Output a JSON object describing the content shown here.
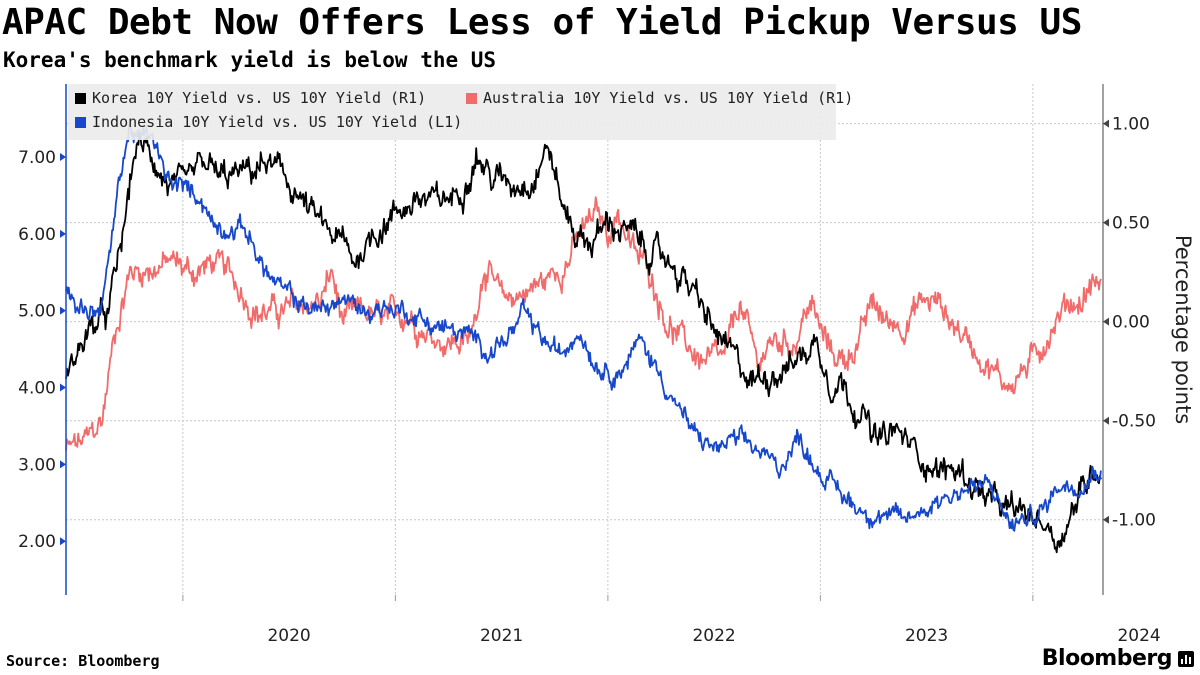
{
  "header": {
    "title": "APAC Debt Now Offers Less of Yield Pickup Versus US",
    "subtitle": "Korea's benchmark yield is below the US"
  },
  "footer": {
    "source": "Source: Bloomberg",
    "brand": "Bloomberg"
  },
  "chart_data": {
    "type": "line",
    "title": "APAC Debt Now Offers Less of Yield Pickup Versus US",
    "subtitle": "Korea's benchmark yield is below the US",
    "xlabel": "",
    "ylabel_right": "Percentage points",
    "x_ticks": [
      "2020",
      "2021",
      "2022",
      "2023",
      "2024"
    ],
    "x_range": [
      2019.45,
      2024.33
    ],
    "y_left": {
      "ticks": [
        "2.00",
        "3.00",
        "4.00",
        "5.00",
        "6.00",
        "7.00"
      ],
      "range": [
        1.3,
        7.95
      ]
    },
    "y_right": {
      "ticks": [
        "-1.00",
        "-0.50",
        "0.00",
        "0.50",
        "1.00"
      ],
      "range": [
        -1.38,
        1.2
      ]
    },
    "grid": true,
    "legend_position": "top-left",
    "colors": {
      "korea": "#000000",
      "australia": "#f26b6b",
      "indonesia": "#1748cc"
    },
    "series": [
      {
        "name": "Korea 10Y Yield vs. US 10Y Yield",
        "axis_label": "(R1)",
        "axis": "right",
        "color": "#000000",
        "points": [
          [
            2019.45,
            -0.27
          ],
          [
            2019.55,
            -0.05
          ],
          [
            2019.65,
            0.04
          ],
          [
            2019.72,
            0.45
          ],
          [
            2019.78,
            0.9
          ],
          [
            2019.85,
            0.85
          ],
          [
            2019.92,
            0.7
          ],
          [
            2020.0,
            0.66
          ],
          [
            2020.1,
            0.8
          ],
          [
            2020.18,
            0.72
          ],
          [
            2020.3,
            0.75
          ],
          [
            2020.4,
            0.8
          ],
          [
            2020.5,
            0.7
          ],
          [
            2020.6,
            0.55
          ],
          [
            2020.68,
            0.45
          ],
          [
            2020.75,
            0.4
          ],
          [
            2020.8,
            0.3
          ],
          [
            2020.9,
            0.45
          ],
          [
            2021.0,
            0.55
          ],
          [
            2021.1,
            0.62
          ],
          [
            2021.2,
            0.6
          ],
          [
            2021.3,
            0.65
          ],
          [
            2021.38,
            0.85
          ],
          [
            2021.45,
            0.73
          ],
          [
            2021.55,
            0.7
          ],
          [
            2021.65,
            0.73
          ],
          [
            2021.72,
            0.9
          ],
          [
            2021.78,
            0.6
          ],
          [
            2021.85,
            0.45
          ],
          [
            2021.92,
            0.4
          ],
          [
            2022.0,
            0.5
          ],
          [
            2022.1,
            0.45
          ],
          [
            2022.2,
            0.35
          ],
          [
            2022.3,
            0.3
          ],
          [
            2022.4,
            0.15
          ],
          [
            2022.5,
            -0.05
          ],
          [
            2022.6,
            -0.2
          ],
          [
            2022.68,
            -0.3
          ],
          [
            2022.78,
            -0.25
          ],
          [
            2022.88,
            -0.2
          ],
          [
            2022.98,
            -0.1
          ],
          [
            2023.05,
            -0.3
          ],
          [
            2023.1,
            -0.3
          ],
          [
            2023.15,
            -0.4
          ],
          [
            2023.2,
            -0.45
          ],
          [
            2023.25,
            -0.6
          ],
          [
            2023.3,
            -0.6
          ],
          [
            2023.35,
            -0.55
          ],
          [
            2023.45,
            -0.65
          ],
          [
            2023.55,
            -0.75
          ],
          [
            2023.65,
            -0.75
          ],
          [
            2023.75,
            -0.85
          ],
          [
            2023.85,
            -0.95
          ],
          [
            2023.95,
            -0.97
          ],
          [
            2024.05,
            -1.0
          ],
          [
            2024.12,
            -1.1
          ],
          [
            2024.2,
            -0.92
          ],
          [
            2024.28,
            -0.75
          ],
          [
            2024.32,
            -0.72
          ]
        ]
      },
      {
        "name": "Australia 10Y Yield vs. US 10Y Yield",
        "axis_label": "(R1)",
        "axis": "right",
        "color": "#f26b6b",
        "points": [
          [
            2019.45,
            -0.65
          ],
          [
            2019.55,
            -0.6
          ],
          [
            2019.62,
            -0.5
          ],
          [
            2019.68,
            -0.05
          ],
          [
            2019.75,
            0.25
          ],
          [
            2019.85,
            0.27
          ],
          [
            2019.95,
            0.3
          ],
          [
            2020.05,
            0.25
          ],
          [
            2020.15,
            0.3
          ],
          [
            2020.25,
            0.2
          ],
          [
            2020.35,
            0.05
          ],
          [
            2020.45,
            0.05
          ],
          [
            2020.55,
            0.08
          ],
          [
            2020.65,
            0.1
          ],
          [
            2020.7,
            0.25
          ],
          [
            2020.75,
            0.0
          ],
          [
            2020.85,
            0.05
          ],
          [
            2020.95,
            0.0
          ],
          [
            2021.05,
            0.05
          ],
          [
            2021.15,
            -0.05
          ],
          [
            2021.25,
            -0.1
          ],
          [
            2021.35,
            -0.1
          ],
          [
            2021.42,
            0.3
          ],
          [
            2021.5,
            0.1
          ],
          [
            2021.6,
            0.15
          ],
          [
            2021.7,
            0.2
          ],
          [
            2021.8,
            0.3
          ],
          [
            2021.88,
            0.45
          ],
          [
            2021.95,
            0.55
          ],
          [
            2022.0,
            0.45
          ],
          [
            2022.05,
            0.55
          ],
          [
            2022.12,
            0.35
          ],
          [
            2022.2,
            0.25
          ],
          [
            2022.28,
            0.0
          ],
          [
            2022.35,
            -0.1
          ],
          [
            2022.45,
            -0.2
          ],
          [
            2022.55,
            -0.2
          ],
          [
            2022.62,
            0.1
          ],
          [
            2022.7,
            -0.2
          ],
          [
            2022.78,
            -0.1
          ],
          [
            2022.88,
            -0.1
          ],
          [
            2022.95,
            0.1
          ],
          [
            2023.02,
            -0.1
          ],
          [
            2023.1,
            -0.2
          ],
          [
            2023.18,
            -0.1
          ],
          [
            2023.25,
            0.1
          ],
          [
            2023.3,
            0.0
          ],
          [
            2023.4,
            0.0
          ],
          [
            2023.48,
            0.1
          ],
          [
            2023.55,
            0.1
          ],
          [
            2023.62,
            0.0
          ],
          [
            2023.7,
            -0.1
          ],
          [
            2023.78,
            -0.2
          ],
          [
            2023.85,
            -0.3
          ],
          [
            2023.9,
            -0.3
          ],
          [
            2023.95,
            -0.25
          ],
          [
            2024.0,
            -0.2
          ],
          [
            2024.05,
            -0.1
          ],
          [
            2024.1,
            0.0
          ],
          [
            2024.17,
            0.1
          ],
          [
            2024.23,
            0.1
          ],
          [
            2024.28,
            0.2
          ],
          [
            2024.32,
            0.2
          ]
        ]
      },
      {
        "name": "Indonesia 10Y Yield vs. US 10Y Yield",
        "axis_label": "(L1)",
        "axis": "left",
        "color": "#1748cc",
        "points": [
          [
            2019.45,
            5.25
          ],
          [
            2019.52,
            5.05
          ],
          [
            2019.58,
            5.0
          ],
          [
            2019.62,
            5.1
          ],
          [
            2019.66,
            5.8
          ],
          [
            2019.7,
            6.7
          ],
          [
            2019.75,
            7.4
          ],
          [
            2019.8,
            7.2
          ],
          [
            2019.85,
            7.3
          ],
          [
            2019.92,
            6.7
          ],
          [
            2020.0,
            6.6
          ],
          [
            2020.08,
            6.5
          ],
          [
            2020.15,
            6.1
          ],
          [
            2020.22,
            6.1
          ],
          [
            2020.3,
            6.05
          ],
          [
            2020.38,
            5.55
          ],
          [
            2020.45,
            5.3
          ],
          [
            2020.55,
            5.1
          ],
          [
            2020.65,
            5.0
          ],
          [
            2020.75,
            5.15
          ],
          [
            2020.85,
            5.0
          ],
          [
            2020.95,
            5.05
          ],
          [
            2021.05,
            5.0
          ],
          [
            2021.15,
            4.85
          ],
          [
            2021.25,
            4.75
          ],
          [
            2021.35,
            4.65
          ],
          [
            2021.45,
            4.5
          ],
          [
            2021.55,
            4.7
          ],
          [
            2021.6,
            4.95
          ],
          [
            2021.7,
            4.6
          ],
          [
            2021.78,
            4.4
          ],
          [
            2021.86,
            4.8
          ],
          [
            2021.95,
            4.3
          ],
          [
            2022.05,
            4.2
          ],
          [
            2022.15,
            4.6
          ],
          [
            2022.2,
            4.4
          ],
          [
            2022.3,
            3.9
          ],
          [
            2022.4,
            3.4
          ],
          [
            2022.5,
            3.2
          ],
          [
            2022.6,
            3.3
          ],
          [
            2022.7,
            3.2
          ],
          [
            2022.8,
            2.95
          ],
          [
            2022.9,
            3.35
          ],
          [
            2023.0,
            2.9
          ],
          [
            2023.1,
            2.6
          ],
          [
            2023.2,
            2.4
          ],
          [
            2023.3,
            2.35
          ],
          [
            2023.38,
            2.25
          ],
          [
            2023.45,
            2.35
          ],
          [
            2023.52,
            2.5
          ],
          [
            2023.6,
            2.6
          ],
          [
            2023.7,
            2.7
          ],
          [
            2023.8,
            2.7
          ],
          [
            2023.9,
            2.2
          ],
          [
            2023.98,
            2.3
          ],
          [
            2024.05,
            2.4
          ],
          [
            2024.12,
            2.75
          ],
          [
            2024.2,
            2.75
          ],
          [
            2024.28,
            2.9
          ],
          [
            2024.32,
            3.0
          ]
        ]
      }
    ]
  }
}
